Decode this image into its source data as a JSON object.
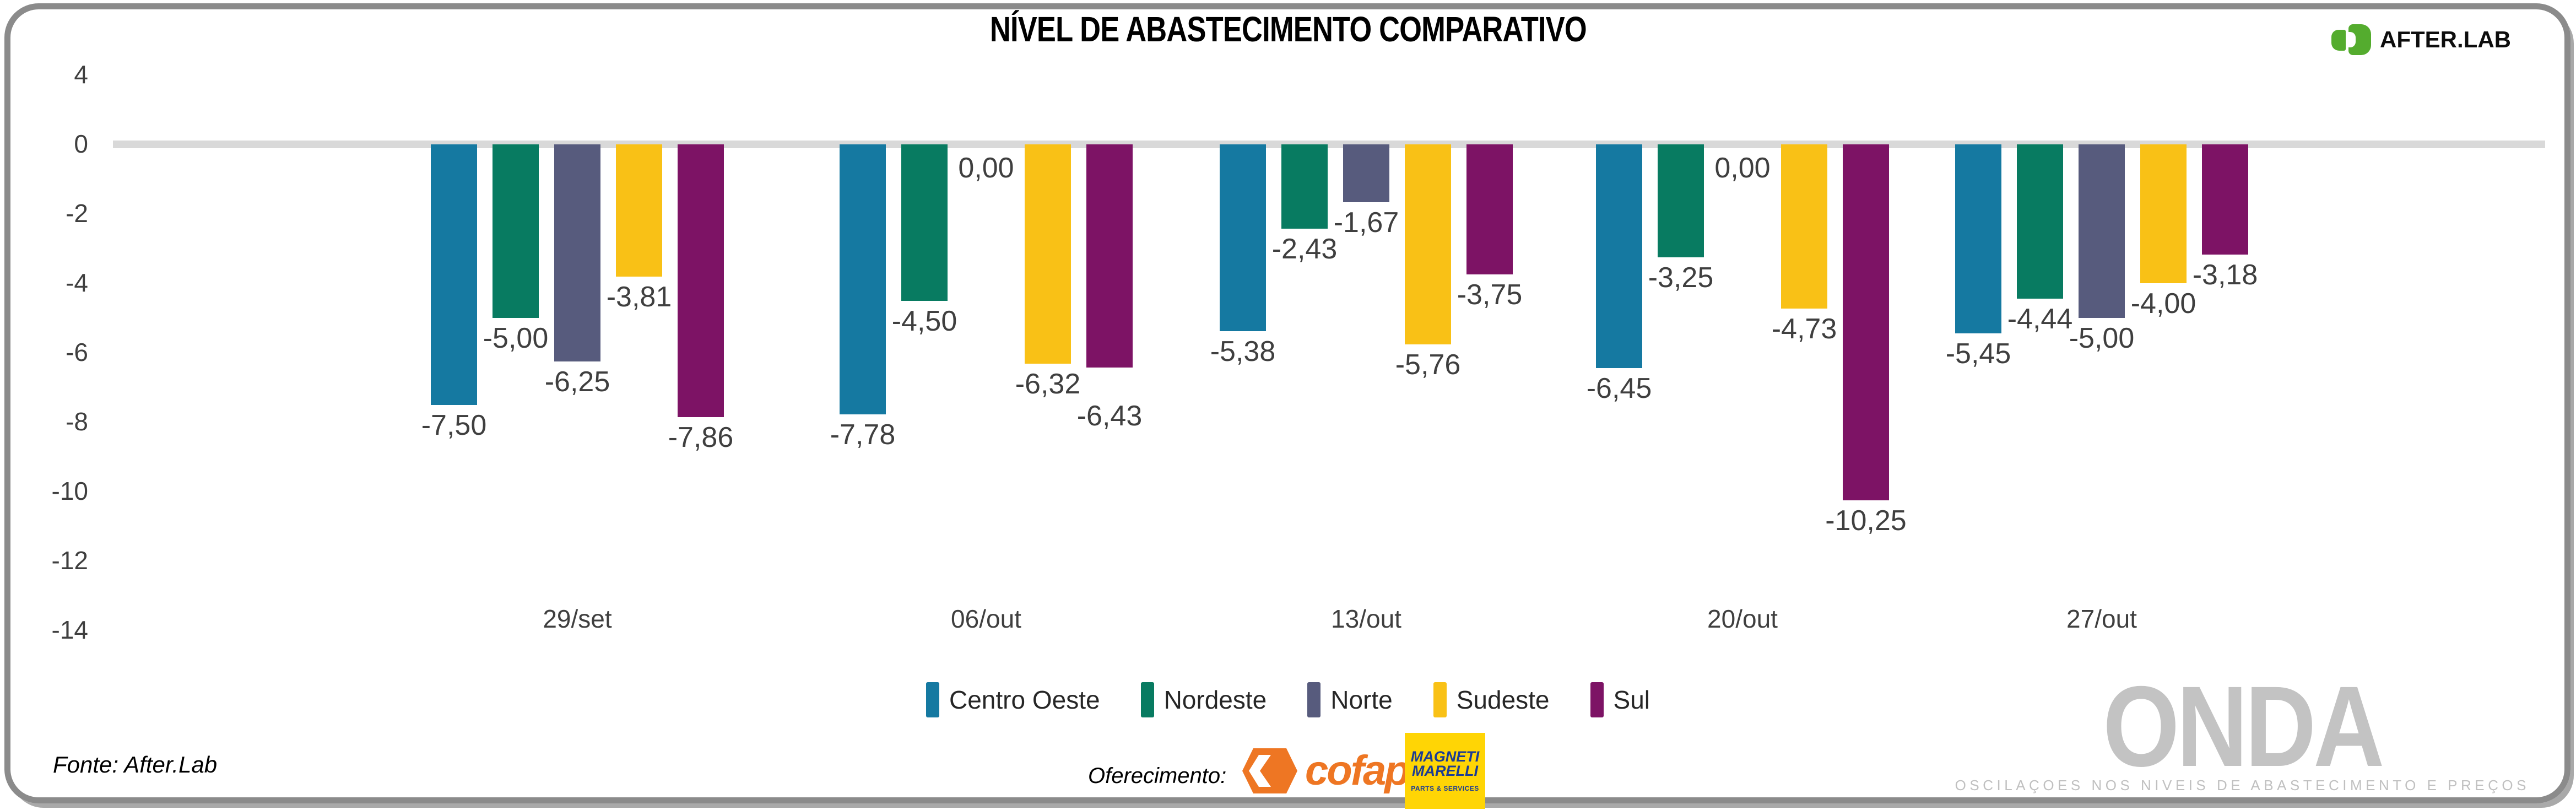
{
  "title": "NÍVEL DE ABASTECIMENTO COMPARATIVO",
  "brand": {
    "name": "AFTER.LAB",
    "icon_color": "#54AC2E"
  },
  "chart_data": {
    "type": "bar",
    "title": "NÍVEL DE ABASTECIMENTO COMPARATIVO",
    "categories": [
      "29/set",
      "06/out",
      "13/out",
      "20/out",
      "27/out"
    ],
    "series": [
      {
        "name": "Centro Oeste",
        "color": "#1579A1",
        "values": [
          -7.5,
          -7.78,
          -5.38,
          -6.45,
          -5.45
        ],
        "labels": [
          "-7,50",
          "-7,78",
          "-5,38",
          "-6,45",
          "-5,45"
        ]
      },
      {
        "name": "Nordeste",
        "color": "#087B61",
        "values": [
          -5.0,
          -4.5,
          -2.43,
          -3.25,
          -4.44
        ],
        "labels": [
          "-5,00",
          "-4,50",
          "-2,43",
          "-3,25",
          "-4,44"
        ]
      },
      {
        "name": "Norte",
        "color": "#575B7D",
        "values": [
          -6.25,
          0.0,
          -1.67,
          0.0,
          -5.0
        ],
        "labels": [
          "-6,25",
          "0,00",
          "-1,67",
          "0,00",
          "-5,00"
        ]
      },
      {
        "name": "Sudeste",
        "color": "#F9C116",
        "values": [
          -3.81,
          -6.32,
          -5.76,
          -4.73,
          -4.0
        ],
        "labels": [
          "-3,81",
          "-6,32",
          "-5,76",
          "-4,73",
          "-4,00"
        ]
      },
      {
        "name": "Sul",
        "color": "#7D1365",
        "values": [
          -7.86,
          -6.43,
          -3.75,
          -10.25,
          -3.18
        ],
        "labels": [
          "-7,86",
          "-6,43",
          "-3,75",
          "-10,25",
          "-3,18"
        ]
      }
    ],
    "y_axis": {
      "tick_labels": [
        "4",
        "0",
        "-2",
        "-4",
        "-6",
        "-8",
        "-10",
        "-12",
        "-14"
      ],
      "ylim": [
        -14,
        4
      ]
    },
    "grid": "zero-line-only",
    "zero_line_color": "#D9D9D9",
    "value_label_color": "#3F3F3F",
    "legend_position": "bottom"
  },
  "footer": {
    "fonte": "Fonte: After.Lab",
    "oferecimento_label": "Oferecimento:",
    "cofap_text": "cofap",
    "magneti_line1": "MAGNETI",
    "magneti_line2": "MARELLI",
    "magneti_sub": "PARTS & SERVICES"
  },
  "watermark": {
    "text": "ONDA",
    "subtitle": "OSCILAÇOES NOS NIVEIS DE ABASTECIMENTO E PREÇOS"
  },
  "colors": {
    "frame": "#8B8B8B",
    "watermark": "#C3C3C3",
    "cofap_orange": "#EE7623",
    "magneti_yellow": "#FFD505",
    "magneti_blue": "#1C3C94"
  }
}
